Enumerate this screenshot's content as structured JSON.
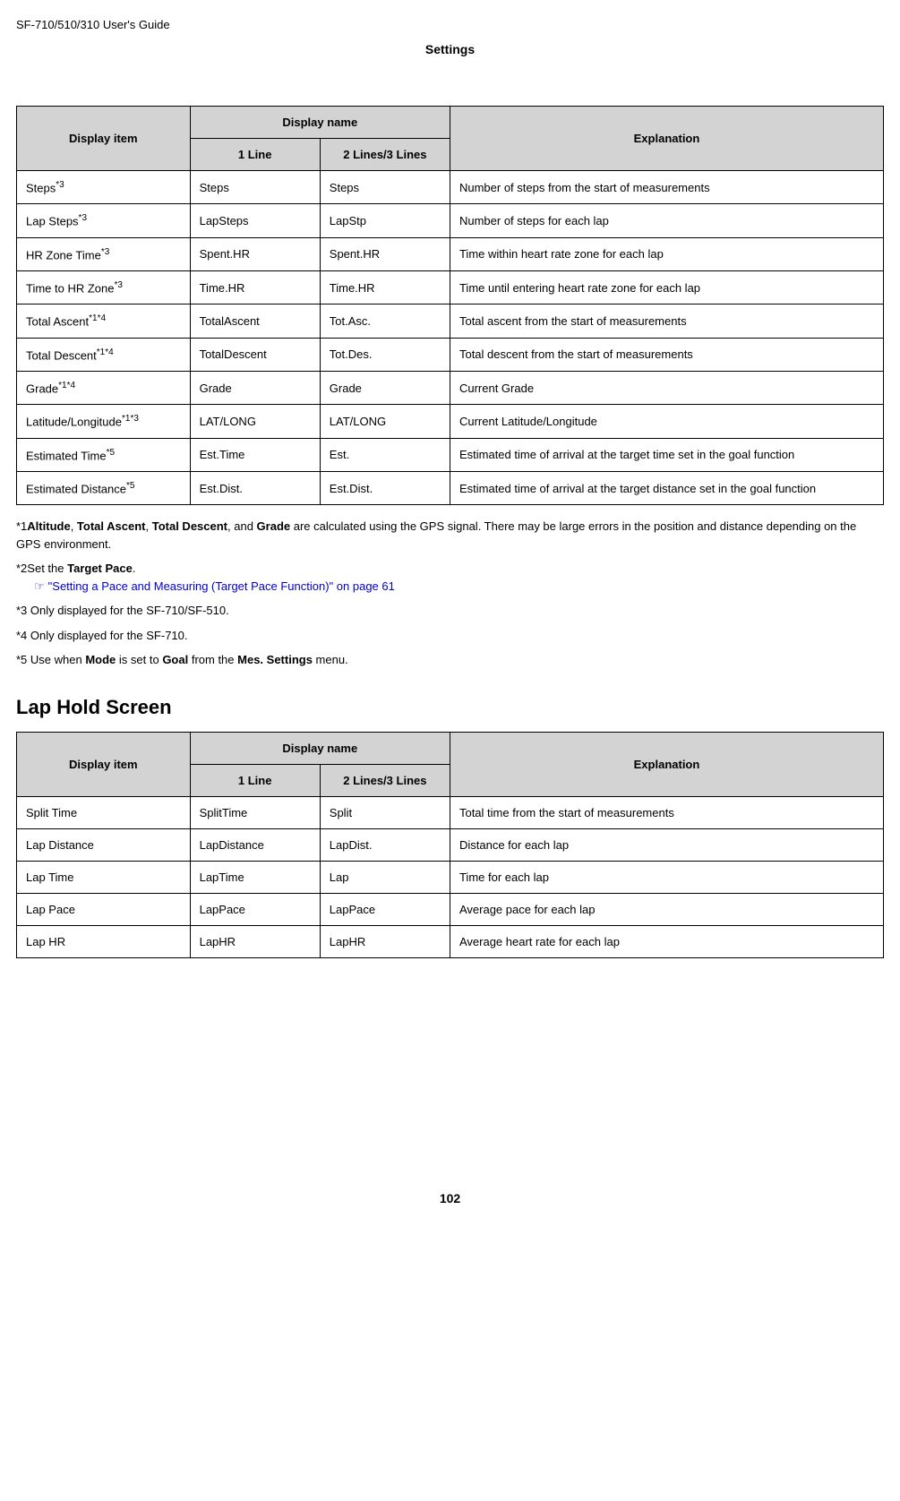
{
  "header": "SF-710/510/310     User's Guide",
  "pageTitle": "Settings",
  "table1": {
    "headers": {
      "displayItem": "Display item",
      "displayName": "Display name",
      "line1": "1 Line",
      "line2": "2 Lines/3 Lines",
      "explanation": "Explanation"
    },
    "rows": [
      {
        "item": "Steps",
        "sup": "*3",
        "l1": "Steps",
        "l2": "Steps",
        "exp": "Number of steps from the start of measurements"
      },
      {
        "item": "Lap Steps",
        "sup": "*3",
        "l1": "LapSteps",
        "l2": "LapStp",
        "exp": "Number of steps for each lap"
      },
      {
        "item": "HR Zone Time",
        "sup": "*3",
        "l1": "Spent.HR",
        "l2": "Spent.HR",
        "exp": "Time within heart rate zone for each lap"
      },
      {
        "item": "Time to HR Zone",
        "sup": "*3",
        "l1": "Time.HR",
        "l2": "Time.HR",
        "exp": "Time until entering heart rate zone for each lap"
      },
      {
        "item": "Total Ascent",
        "sup": "*1*4",
        "l1": "TotalAscent",
        "l2": "Tot.Asc.",
        "exp": "Total ascent from the start of measurements"
      },
      {
        "item": "Total Descent",
        "sup": "*1*4",
        "l1": "TotalDescent",
        "l2": "Tot.Des.",
        "exp": "Total descent from the start of measurements"
      },
      {
        "item": "Grade",
        "sup": "*1*4",
        "l1": "Grade",
        "l2": "Grade",
        "exp": "Current Grade"
      },
      {
        "item": "Latitude/Longitude",
        "sup": "*1*3",
        "l1": "LAT/LONG",
        "l2": "LAT/LONG",
        "exp": "Current Latitude/Longitude"
      },
      {
        "item": "Estimated Time",
        "sup": "*5",
        "l1": "Est.Time",
        "l2": "Est.",
        "exp": "Estimated time of arrival at the target time set in the goal function"
      },
      {
        "item": "Estimated Distance",
        "sup": "*5",
        "l1": "Est.Dist.",
        "l2": "Est.Dist.",
        "exp": "Estimated time of arrival at the target distance set in the goal function"
      }
    ]
  },
  "footnotes": {
    "n1a": "*1",
    "n1b": "Altitude",
    "n1c": ", ",
    "n1d": "Total Ascent",
    "n1e": ", ",
    "n1f": "Total Descent",
    "n1g": ", and ",
    "n1h": "Grade",
    "n1i": " are calculated using the GPS signal. There may be large errors in the position and distance depending on the GPS environment.",
    "n2a": "*2Set the ",
    "n2b": "Target Pace",
    "n2c": ".",
    "n2link": "\"Setting a Pace and Measuring (Target Pace Function)\" on page 61",
    "n3": "*3 Only displayed for the SF-710/SF-510.",
    "n4": "*4 Only displayed for the SF-710.",
    "n5a": "*5 Use when ",
    "n5b": "Mode",
    "n5c": " is set to ",
    "n5d": "Goal",
    "n5e": " from the ",
    "n5f": "Mes. Settings",
    "n5g": " menu."
  },
  "section2Title": "Lap Hold Screen",
  "table2": {
    "rows": [
      {
        "item": "Split Time",
        "l1": "SplitTime",
        "l2": "Split",
        "exp": "Total time from the start of measurements"
      },
      {
        "item": "Lap Distance",
        "l1": "LapDistance",
        "l2": "LapDist.",
        "exp": "Distance for each lap"
      },
      {
        "item": "Lap Time",
        "l1": "LapTime",
        "l2": "Lap",
        "exp": "Time for each lap"
      },
      {
        "item": "Lap Pace",
        "l1": "LapPace",
        "l2": "LapPace",
        "exp": "Average pace for each lap"
      },
      {
        "item": "Lap HR",
        "l1": "LapHR",
        "l2": "LapHR",
        "exp": "Average heart rate for each lap"
      }
    ]
  },
  "pageNumber": "102"
}
